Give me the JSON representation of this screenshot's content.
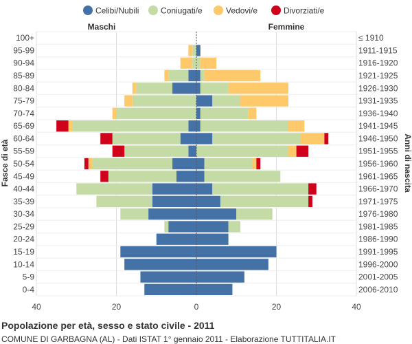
{
  "chart_data": {
    "type": "bar",
    "title": "Popolazione per età, sesso e stato civile - 2011",
    "subtitle": "COMUNE DI GARBAGNA (AL) - Dati ISTAT 1° gennaio 2011 - Elaborazione TUTTITALIA.IT",
    "ylabel_left": "Fasce di età",
    "ylabel_right": "Anni di nascita",
    "left_side_label": "Maschi",
    "right_side_label": "Femmine",
    "xlim": [
      -40,
      40
    ],
    "x_ticks": [
      -40,
      -20,
      0,
      20,
      40
    ],
    "x_tick_labels": [
      "40",
      "20",
      "0",
      "20",
      "40"
    ],
    "grid": true,
    "legend_position": "top",
    "series_names": [
      "Celibi/Nubili",
      "Coniugati/e",
      "Vedovi/e",
      "Divorziati/e"
    ],
    "series_colors": [
      "#4472a6",
      "#c5dba6",
      "#fdc96b",
      "#d0021b"
    ],
    "categories": [
      "100+",
      "95-99",
      "90-94",
      "85-89",
      "80-84",
      "75-79",
      "70-74",
      "65-69",
      "60-64",
      "55-59",
      "50-54",
      "45-49",
      "40-44",
      "35-39",
      "30-34",
      "25-29",
      "20-24",
      "15-19",
      "10-14",
      "5-9",
      "0-4"
    ],
    "birth_years": [
      "≤ 1910",
      "1911-1915",
      "1916-1920",
      "1921-1925",
      "1926-1930",
      "1931-1935",
      "1936-1940",
      "1941-1945",
      "1946-1950",
      "1951-1955",
      "1956-1960",
      "1961-1965",
      "1966-1970",
      "1971-1975",
      "1976-1980",
      "1981-1985",
      "1986-1990",
      "1991-1995",
      "1996-2000",
      "2001-2005",
      "2006-2010"
    ],
    "males": {
      "Celibi/Nubili": [
        0,
        0,
        0,
        2,
        6,
        0,
        0,
        2,
        4,
        2,
        6,
        5,
        11,
        11,
        12,
        7,
        10,
        19,
        18,
        14,
        13
      ],
      "Coniugati/e": [
        0,
        1,
        1,
        5,
        9,
        16,
        20,
        29,
        17,
        16,
        20,
        17,
        19,
        14,
        7,
        1,
        0,
        0,
        0,
        0,
        0
      ],
      "Vedovi/e": [
        0,
        1,
        3,
        1,
        1,
        2,
        1,
        1,
        0,
        0,
        1,
        0,
        0,
        0,
        0,
        0,
        0,
        0,
        0,
        0,
        0
      ],
      "Divorziati/e": [
        0,
        0,
        0,
        0,
        0,
        0,
        0,
        3,
        3,
        3,
        1,
        2,
        0,
        0,
        0,
        0,
        0,
        0,
        0,
        0,
        0
      ]
    },
    "females": {
      "Celibi/Nubili": [
        0,
        1,
        0,
        1,
        1,
        4,
        1,
        1,
        4,
        0,
        2,
        2,
        4,
        6,
        10,
        8,
        8,
        20,
        18,
        12,
        9
      ],
      "Coniugati/e": [
        0,
        0,
        1,
        1,
        7,
        7,
        12,
        22,
        22,
        23,
        12,
        19,
        24,
        22,
        9,
        3,
        0,
        0,
        0,
        0,
        0
      ],
      "Vedovi/e": [
        0,
        0,
        4,
        14,
        15,
        12,
        2,
        4,
        6,
        2,
        1,
        0,
        0,
        0,
        0,
        0,
        0,
        0,
        0,
        0,
        0
      ],
      "Divorziati/e": [
        0,
        0,
        0,
        0,
        0,
        0,
        0,
        0,
        1,
        3,
        1,
        0,
        2,
        1,
        0,
        0,
        0,
        0,
        0,
        0,
        0
      ]
    }
  }
}
